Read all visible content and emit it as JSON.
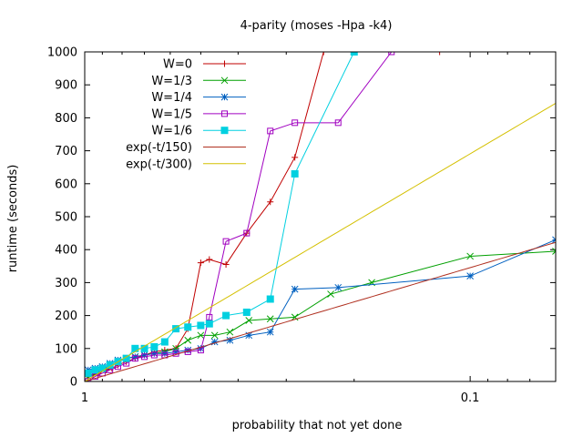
{
  "chart_data": {
    "type": "line",
    "title": "4-parity (moses -Hpa -k4)",
    "xlabel": "probability that not yet done",
    "ylabel": "runtime (seconds)",
    "x_scale": "log",
    "x_direction": "reversed",
    "xlim": [
      1,
      0.06
    ],
    "ylim": [
      0,
      1000
    ],
    "x_ticks": [
      {
        "value": 1,
        "label": "1"
      },
      {
        "value": 0.1,
        "label": "0.1"
      }
    ],
    "y_ticks": [
      {
        "value": 0,
        "label": "0"
      },
      {
        "value": 100,
        "label": "100"
      },
      {
        "value": 200,
        "label": "200"
      },
      {
        "value": 300,
        "label": "300"
      },
      {
        "value": 400,
        "label": "400"
      },
      {
        "value": 500,
        "label": "500"
      },
      {
        "value": 600,
        "label": "600"
      },
      {
        "value": 700,
        "label": "700"
      },
      {
        "value": 800,
        "label": "800"
      },
      {
        "value": 900,
        "label": "900"
      },
      {
        "value": 1000,
        "label": "1000"
      }
    ],
    "grid": false,
    "legend_position": "top-left",
    "series": [
      {
        "name": "W=0",
        "color": "#c00000",
        "marker": "plus",
        "x": [
          0.98,
          0.95,
          0.92,
          0.88,
          0.85,
          0.82,
          0.78,
          0.74,
          0.7,
          0.66,
          0.62,
          0.58,
          0.54,
          0.5,
          0.475,
          0.43,
          0.38,
          0.33,
          0.285,
          0.24,
          0.2,
          0.12
        ],
        "y": [
          15,
          20,
          25,
          35,
          40,
          50,
          60,
          70,
          80,
          90,
          95,
          100,
          160,
          360,
          370,
          355,
          450,
          545,
          680,
          1000,
          1000,
          1000
        ]
      },
      {
        "name": "W=1/3",
        "color": "#00a000",
        "marker": "x",
        "x": [
          0.98,
          0.94,
          0.9,
          0.86,
          0.82,
          0.78,
          0.74,
          0.7,
          0.66,
          0.62,
          0.58,
          0.54,
          0.5,
          0.46,
          0.42,
          0.375,
          0.33,
          0.285,
          0.23,
          0.18,
          0.1,
          0.06
        ],
        "y": [
          15,
          25,
          35,
          45,
          60,
          70,
          75,
          80,
          85,
          90,
          100,
          125,
          140,
          140,
          150,
          185,
          190,
          195,
          265,
          300,
          380,
          395
        ]
      },
      {
        "name": "W=1/4",
        "color": "#0060c0",
        "marker": "star",
        "x": [
          0.98,
          0.94,
          0.9,
          0.86,
          0.82,
          0.78,
          0.74,
          0.7,
          0.66,
          0.62,
          0.58,
          0.54,
          0.5,
          0.46,
          0.42,
          0.375,
          0.33,
          0.285,
          0.22,
          0.1,
          0.06
        ],
        "y": [
          35,
          40,
          45,
          55,
          65,
          70,
          75,
          80,
          85,
          85,
          90,
          95,
          100,
          120,
          125,
          140,
          150,
          280,
          285,
          320,
          430
        ]
      },
      {
        "name": "W=1/5",
        "color": "#a000c0",
        "marker": "square",
        "x": [
          0.98,
          0.94,
          0.9,
          0.86,
          0.82,
          0.78,
          0.74,
          0.7,
          0.66,
          0.62,
          0.58,
          0.54,
          0.5,
          0.475,
          0.43,
          0.38,
          0.33,
          0.285,
          0.22,
          0.16
        ],
        "y": [
          0,
          15,
          25,
          35,
          45,
          55,
          70,
          75,
          80,
          80,
          85,
          90,
          95,
          195,
          425,
          450,
          760,
          785,
          785,
          1000
        ]
      },
      {
        "name": "W=1/6",
        "color": "#00d0e0",
        "marker": "filled-square",
        "x": [
          0.98,
          0.94,
          0.9,
          0.86,
          0.82,
          0.78,
          0.74,
          0.7,
          0.66,
          0.62,
          0.58,
          0.54,
          0.5,
          0.475,
          0.43,
          0.38,
          0.33,
          0.285,
          0.2
        ],
        "y": [
          25,
          35,
          40,
          50,
          60,
          70,
          100,
          100,
          105,
          120,
          160,
          165,
          170,
          175,
          200,
          210,
          250,
          630,
          1000
        ]
      },
      {
        "name": "exp(-t/150)",
        "color": "#b03020",
        "marker": "none",
        "function": "-150*ln(x)"
      },
      {
        "name": "exp(-t/300)",
        "color": "#d4c000",
        "marker": "none",
        "function": "-300*ln(x)"
      }
    ]
  }
}
